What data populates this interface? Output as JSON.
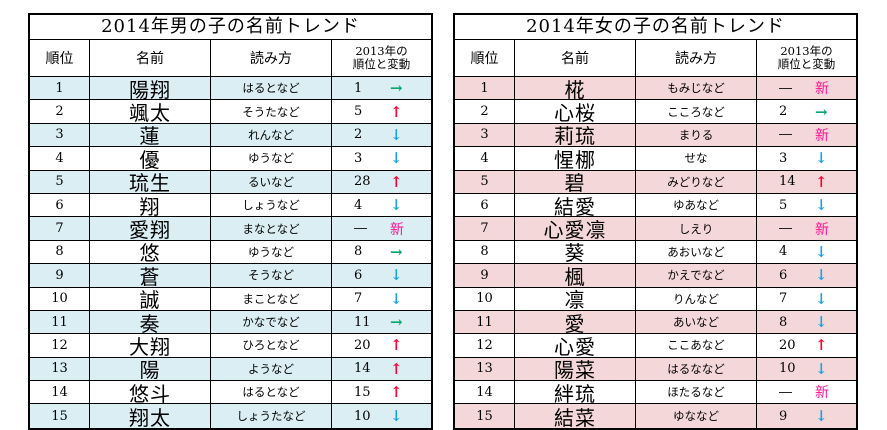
{
  "boys": {
    "title": "2014年男の子の名前トレンド",
    "headers": {
      "rank": "順位",
      "name": "名前",
      "reading": "読み方",
      "change_line1": "2013年の",
      "change_line2": "順位と変動"
    },
    "rows": [
      {
        "rank": "1",
        "name": "陽翔",
        "reading": "はるとなど",
        "prev": "1",
        "arrow": "→",
        "trend": "same"
      },
      {
        "rank": "2",
        "name": "颯太",
        "reading": "そうたなど",
        "prev": "5",
        "arrow": "↑",
        "trend": "up"
      },
      {
        "rank": "3",
        "name": "蓮",
        "reading": "れんなど",
        "prev": "2",
        "arrow": "↓",
        "trend": "down"
      },
      {
        "rank": "4",
        "name": "優",
        "reading": "ゆうなど",
        "prev": "3",
        "arrow": "↓",
        "trend": "down"
      },
      {
        "rank": "5",
        "name": "琉生",
        "reading": "るいなど",
        "prev": "28",
        "arrow": "↑",
        "trend": "up"
      },
      {
        "rank": "6",
        "name": "翔",
        "reading": "しょうなど",
        "prev": "4",
        "arrow": "↓",
        "trend": "down"
      },
      {
        "rank": "7",
        "name": "愛翔",
        "reading": "まなとなど",
        "prev": "―",
        "arrow": "新",
        "trend": "new"
      },
      {
        "rank": "8",
        "name": "悠",
        "reading": "ゆうなど",
        "prev": "8",
        "arrow": "→",
        "trend": "same"
      },
      {
        "rank": "9",
        "name": "蒼",
        "reading": "そうなど",
        "prev": "6",
        "arrow": "↓",
        "trend": "down"
      },
      {
        "rank": "10",
        "name": "誠",
        "reading": "まことなど",
        "prev": "7",
        "arrow": "↓",
        "trend": "down"
      },
      {
        "rank": "11",
        "name": "奏",
        "reading": "かなでなど",
        "prev": "11",
        "arrow": "→",
        "trend": "same"
      },
      {
        "rank": "12",
        "name": "大翔",
        "reading": "ひろとなど",
        "prev": "20",
        "arrow": "↑",
        "trend": "up"
      },
      {
        "rank": "13",
        "name": "陽",
        "reading": "ようなど",
        "prev": "14",
        "arrow": "↑",
        "trend": "up"
      },
      {
        "rank": "14",
        "name": "悠斗",
        "reading": "はるとなど",
        "prev": "15",
        "arrow": "↑",
        "trend": "up"
      },
      {
        "rank": "15",
        "name": "翔太",
        "reading": "しょうたなど",
        "prev": "10",
        "arrow": "↓",
        "trend": "down"
      }
    ]
  },
  "girls": {
    "title": "2014年女の子の名前トレンド",
    "headers": {
      "rank": "順位",
      "name": "名前",
      "reading": "読み方",
      "change_line1": "2013年の",
      "change_line2": "順位と変動"
    },
    "rows": [
      {
        "rank": "1",
        "name": "椛",
        "reading": "もみじなど",
        "prev": "―",
        "arrow": "新",
        "trend": "new"
      },
      {
        "rank": "2",
        "name": "心桜",
        "reading": "こころなど",
        "prev": "2",
        "arrow": "→",
        "trend": "same"
      },
      {
        "rank": "3",
        "name": "莉琉",
        "reading": "まりる",
        "prev": "―",
        "arrow": "新",
        "trend": "new"
      },
      {
        "rank": "4",
        "name": "惺梛",
        "reading": "せな",
        "prev": "3",
        "arrow": "↓",
        "trend": "down"
      },
      {
        "rank": "5",
        "name": "碧",
        "reading": "みどりなど",
        "prev": "14",
        "arrow": "↑",
        "trend": "up"
      },
      {
        "rank": "6",
        "name": "結愛",
        "reading": "ゆあなど",
        "prev": "5",
        "arrow": "↓",
        "trend": "down"
      },
      {
        "rank": "7",
        "name": "心愛凛",
        "reading": "しえり",
        "prev": "―",
        "arrow": "新",
        "trend": "new"
      },
      {
        "rank": "8",
        "name": "葵",
        "reading": "あおいなど",
        "prev": "4",
        "arrow": "↓",
        "trend": "down"
      },
      {
        "rank": "9",
        "name": "楓",
        "reading": "かえでなど",
        "prev": "6",
        "arrow": "↓",
        "trend": "down"
      },
      {
        "rank": "10",
        "name": "凛",
        "reading": "りんなど",
        "prev": "7",
        "arrow": "↓",
        "trend": "down"
      },
      {
        "rank": "11",
        "name": "愛",
        "reading": "あいなど",
        "prev": "8",
        "arrow": "↓",
        "trend": "down"
      },
      {
        "rank": "12",
        "name": "心愛",
        "reading": "ここあなど",
        "prev": "20",
        "arrow": "↑",
        "trend": "up"
      },
      {
        "rank": "13",
        "name": "陽菜",
        "reading": "はるななど",
        "prev": "10",
        "arrow": "↓",
        "trend": "down"
      },
      {
        "rank": "14",
        "name": "絆琉",
        "reading": "ほたるなど",
        "prev": "―",
        "arrow": "新",
        "trend": "new"
      },
      {
        "rank": "15",
        "name": "結菜",
        "reading": "ゆななど",
        "prev": "9",
        "arrow": "↓",
        "trend": "down"
      }
    ]
  },
  "colors": {
    "boys_stripe": "#daeef3",
    "girls_stripe": "#f4d7d9",
    "up": "#ff0033",
    "down": "#1aa3e0",
    "same": "#00a86b",
    "new": "#ff1493"
  }
}
